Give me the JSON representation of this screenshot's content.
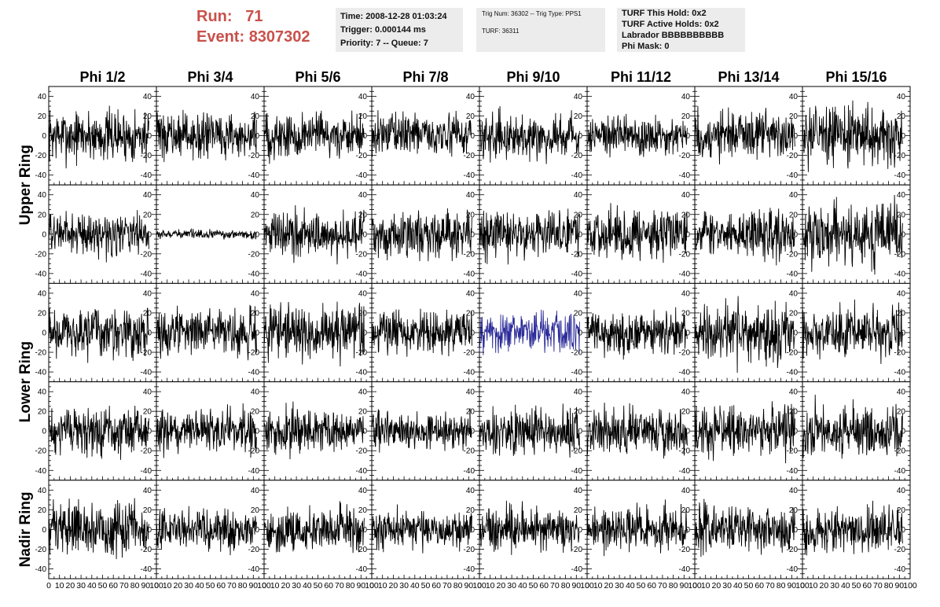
{
  "header": {
    "run_label": "Run:",
    "run_value": "71",
    "event_label": "Event:",
    "event_value": "8307302",
    "time": "Time: 2008-12-28 01:03:24",
    "trigger": "Trigger: 0.000144 ms",
    "priority": "Priority: 7 -- Queue: 7",
    "trig": "Trig Num: 36302 -- Trig Type: PPS1",
    "turf": "TURF: 36311",
    "turf_hold": "TURF This Hold: 0x2",
    "turf_active": "TURF Active Holds: 0x2",
    "labrador": "Labrador BBBBBBBBBB",
    "phi_mask": "Phi Mask: 0"
  },
  "chart_data": {
    "type": "line",
    "columns": [
      "Phi 1/2",
      "Phi 3/4",
      "Phi 5/6",
      "Phi 7/8",
      "Phi 9/10",
      "Phi 11/12",
      "Phi 13/14",
      "Phi 15/16"
    ],
    "ring_labels": [
      "Upper Ring",
      "Lower Ring",
      "Nadir Ring"
    ],
    "ring_label_rows": [
      [
        0,
        1
      ],
      [
        2,
        3
      ],
      [
        4,
        4
      ]
    ],
    "rows": 5,
    "ylim": [
      -50,
      50
    ],
    "yticks": [
      -40,
      -20,
      0,
      20,
      40
    ],
    "xlim": [
      0,
      100
    ],
    "xtick_labels": [
      "0",
      "10",
      "20",
      "30",
      "40",
      "50",
      "60",
      "70",
      "80",
      "90",
      "100"
    ],
    "samples_per_trace": 260,
    "noise_amplitude": [
      [
        18,
        15,
        16,
        14,
        15,
        14,
        17,
        20
      ],
      [
        14,
        3,
        16,
        16,
        16,
        17,
        16,
        21
      ],
      [
        17,
        15,
        18,
        15,
        14,
        15,
        20,
        17
      ],
      [
        16,
        15,
        15,
        13,
        16,
        16,
        17,
        18
      ],
      [
        18,
        14,
        15,
        14,
        15,
        15,
        16,
        15
      ]
    ],
    "colors": {
      "trace": "#000000",
      "highlight": "#2c2c9a",
      "frame": "#000000",
      "background": "#ffffff"
    },
    "highlight_cell": [
      2,
      4
    ]
  }
}
